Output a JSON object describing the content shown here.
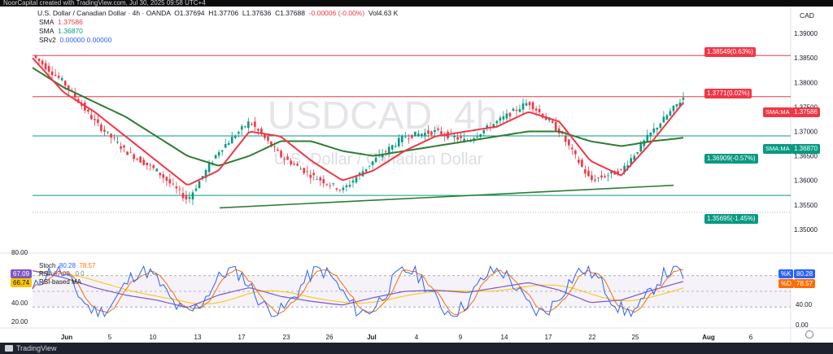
{
  "window": {
    "title": "NoorCapital created with TradingView.com, Jul 30, 2025 09:58 UTC+4"
  },
  "symbol": {
    "name": "U.S. Dollar / Canadian Dollar · 4h · OANDA",
    "open": "O1.37694",
    "high": "H1.37706",
    "low": "L1.37636",
    "close": "C1.37688",
    "change": "-0.00006 (-0.00%)",
    "volume": "Vol4.63 K",
    "watermark": "USDCAD, 4h",
    "watermark_sub": "U.S. Dollar / Canadian Dollar",
    "currency": "CAD"
  },
  "indicators": [
    {
      "name": "SMA",
      "value": "1.37586"
    },
    {
      "name": "SMA",
      "value": "1.36870"
    },
    {
      "name": "SRv2",
      "value": "0.00000  0.00000"
    }
  ],
  "price_axis": {
    "labels": [
      "1.39000",
      "1.38500",
      "1.38000",
      "1.37500",
      "1.37000",
      "1.36500",
      "1.36000",
      "1.35500",
      "1.35000"
    ],
    "ymin": 1.3465,
    "ymax": 1.3935
  },
  "tags": {
    "r1": "1.38549(0.63%)",
    "r2": "1.3771(0.02%)",
    "sma1_name": "SMA:MA",
    "sma1_val": "1.37586",
    "sma2_name": "SMA:MA",
    "sma2_val": "1.36870",
    "s1": "1.36909(-0.57%)",
    "s2": "1.35695(-1.45%)"
  },
  "stoch": {
    "title": "Stoch",
    "k": "80.28",
    "d": "78.57",
    "rsi": "67.09",
    "rsi_label": "RSI",
    "rsi_val2": "67.09",
    "rsi_ma": "66.74",
    "rsi_ma_label": "RSI-based MA",
    "zero_text": "0  0",
    "badge_k_label": "%K",
    "badge_k": "80.28",
    "badge_d_label": "%D",
    "badge_d": "78.57",
    "left_axis": [
      "80.00",
      "40.00",
      "20.00"
    ],
    "right_axis": [
      "40.00",
      "0.00"
    ]
  },
  "time_axis": [
    "Jun",
    "5",
    "10",
    "13",
    "17",
    "23",
    "26",
    "Jul",
    "4",
    "9",
    "14",
    "17",
    "22",
    "25",
    "Aug",
    "6"
  ],
  "footer": {
    "brand": "TradingView"
  },
  "chart_data": {
    "type": "line",
    "title": "USDCAD, 4h",
    "x": [
      "Jun",
      "5",
      "10",
      "13",
      "17",
      "23",
      "26",
      "Jul",
      "4",
      "9",
      "14",
      "17",
      "22",
      "25",
      "Aug",
      "6"
    ],
    "price_close": [
      1.3855,
      1.38,
      1.372,
      1.366,
      1.362,
      1.356,
      1.366,
      1.372,
      1.365,
      1.361,
      1.358,
      1.364,
      1.369,
      1.37,
      1.368,
      1.372,
      1.376,
      1.37,
      1.36,
      1.362,
      1.37,
      1.3769
    ],
    "sma_fast": [
      1.385,
      1.378,
      1.374,
      1.369,
      1.364,
      1.359,
      1.362,
      1.37,
      1.369,
      1.364,
      1.36,
      1.362,
      1.366,
      1.369,
      1.37,
      1.371,
      1.374,
      1.372,
      1.364,
      1.361,
      1.368,
      1.3759
    ],
    "sma_slow": [
      1.383,
      1.379,
      1.376,
      1.373,
      1.369,
      1.365,
      1.363,
      1.365,
      1.368,
      1.368,
      1.366,
      1.365,
      1.366,
      1.367,
      1.368,
      1.369,
      1.37,
      1.37,
      1.368,
      1.367,
      1.368,
      1.3687
    ],
    "levels": [
      1.38549,
      1.3771,
      1.36909,
      1.35695
    ],
    "trendline": [
      [
        0,
        1.3544
      ],
      [
        21,
        1.359
      ]
    ],
    "ylim": [
      1.3465,
      1.3935
    ]
  }
}
